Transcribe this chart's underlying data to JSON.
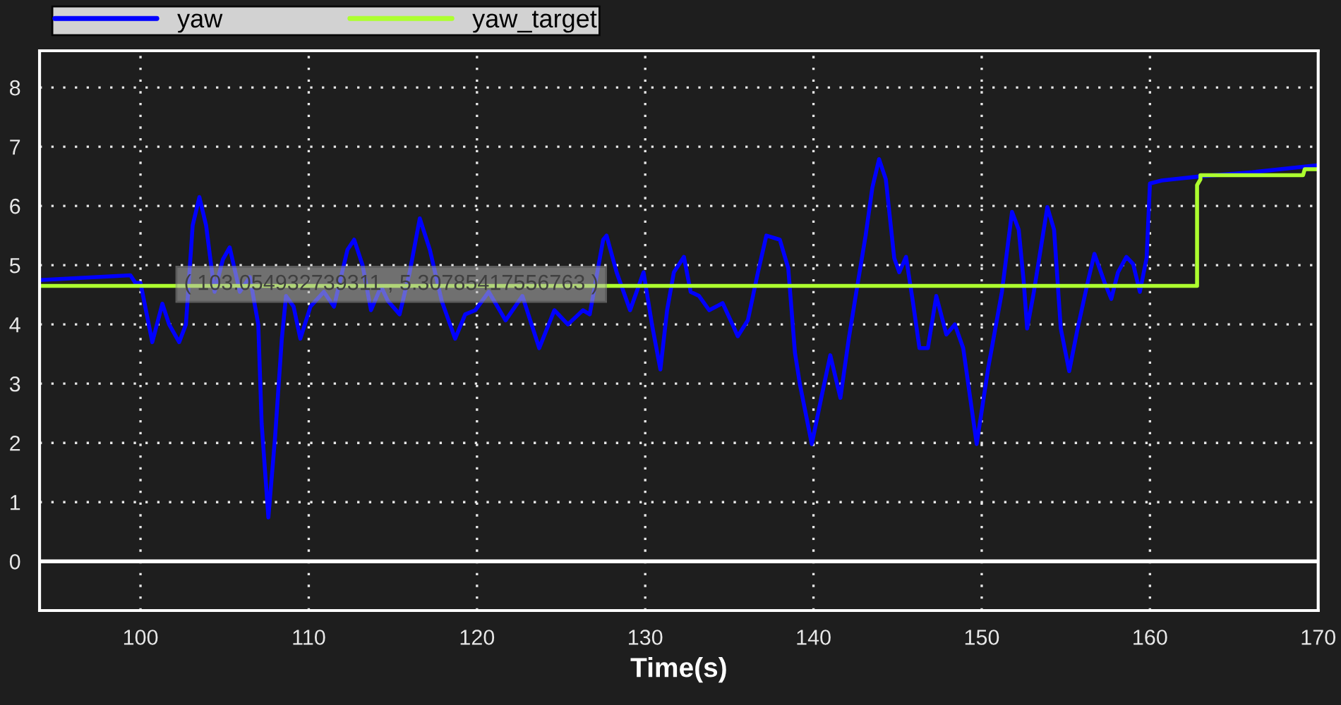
{
  "chart_data": {
    "type": "line",
    "xlabel": "Time(s)",
    "xlim": [
      94,
      170
    ],
    "xticks": [
      100,
      110,
      120,
      130,
      140,
      150,
      160,
      170
    ],
    "ylim": [
      -0.83,
      8.62
    ],
    "yticks": [
      0,
      1,
      2,
      3,
      4,
      5,
      6,
      7,
      8
    ],
    "grid": true,
    "legend": "top left",
    "marker": "none",
    "line_style": "solid",
    "ref_lines": [
      {
        "axis": "y",
        "value": 0,
        "color": "#ffffff"
      }
    ],
    "annotations": [
      {
        "text": "( 103.054932739311 , 5.30785417556763 )",
        "x": 103.05,
        "y": 5.31
      }
    ],
    "series": [
      {
        "name": "yaw",
        "color": "#0000ff",
        "x": [
          94,
          99.4,
          99.7,
          100,
          100.7,
          101.3,
          101.7,
          102.3,
          102.7,
          103.1,
          103.5,
          103.9,
          104.4,
          104.9,
          105.3,
          105.9,
          106.5,
          107.0,
          107.2,
          107.6,
          108.0,
          108.4,
          108.65,
          109.1,
          109.5,
          110.1,
          110.9,
          111.5,
          112.3,
          112.7,
          113.2,
          113.7,
          114.3,
          114.7,
          115.4,
          116.0,
          116.6,
          117.2,
          117.9,
          118.7,
          119.3,
          119.9,
          120.7,
          121.7,
          122.7,
          123.7,
          124.6,
          125.4,
          126.3,
          126.7,
          127.5,
          127.7,
          128.3,
          129.1,
          129.9,
          130.4,
          130.9,
          131.3,
          131.7,
          132.3,
          132.7,
          133.2,
          133.8,
          134.6,
          135.3,
          135.5,
          136.1,
          136.7,
          137.2,
          138.0,
          138.5,
          138.9,
          139.2,
          139.9,
          140.5,
          141.0,
          141.6,
          142.1,
          142.6,
          143.1,
          143.5,
          143.9,
          144.3,
          144.8,
          145.1,
          145.5,
          145.9,
          146.3,
          146.8,
          147.3,
          147.9,
          148.4,
          148.9,
          149.7,
          150.4,
          150.6,
          151.2,
          151.8,
          152.2,
          152.5,
          152.7,
          153.1,
          153.9,
          154.3,
          154.7,
          155.2,
          155.7,
          156.3,
          156.7,
          157.3,
          157.7,
          158.1,
          158.6,
          159.0,
          159.4,
          159.8,
          160.0,
          160.7,
          163.0,
          166.1,
          170
        ],
        "values": [
          4.75,
          4.83,
          4.7,
          4.7,
          3.7,
          4.35,
          4.0,
          3.7,
          4.0,
          5.67,
          6.15,
          5.67,
          4.55,
          5.1,
          5.3,
          4.55,
          4.8,
          4.0,
          2.33,
          0.74,
          2.1,
          3.76,
          4.48,
          4.3,
          3.76,
          4.3,
          4.55,
          4.3,
          5.26,
          5.43,
          5.0,
          4.24,
          4.64,
          4.4,
          4.17,
          4.88,
          5.79,
          5.26,
          4.4,
          3.76,
          4.17,
          4.24,
          4.55,
          4.07,
          4.48,
          3.6,
          4.24,
          4.0,
          4.24,
          4.17,
          5.43,
          5.5,
          4.88,
          4.24,
          4.88,
          4.0,
          3.24,
          4.24,
          4.88,
          5.14,
          4.55,
          4.48,
          4.24,
          4.36,
          3.93,
          3.8,
          4.07,
          4.88,
          5.5,
          5.43,
          4.95,
          3.52,
          2.98,
          1.98,
          2.81,
          3.48,
          2.76,
          3.76,
          4.64,
          5.5,
          6.31,
          6.79,
          6.45,
          5.12,
          4.88,
          5.14,
          4.4,
          3.6,
          3.6,
          4.48,
          3.83,
          4.0,
          3.6,
          1.98,
          3.29,
          3.6,
          4.55,
          5.9,
          5.6,
          4.71,
          3.93,
          4.55,
          5.98,
          5.6,
          3.93,
          3.21,
          3.93,
          4.71,
          5.19,
          4.71,
          4.43,
          4.88,
          5.14,
          5.02,
          4.55,
          5.12,
          6.38,
          6.43,
          6.5,
          6.57,
          6.69
        ]
      },
      {
        "name": "yaw_target",
        "color": "#adff2f",
        "x": [
          94,
          162.8,
          162.8,
          163.0,
          163.0,
          169.1,
          169.2,
          170
        ],
        "values": [
          4.65,
          4.65,
          6.35,
          6.45,
          6.52,
          6.52,
          6.62,
          6.62
        ]
      }
    ]
  }
}
